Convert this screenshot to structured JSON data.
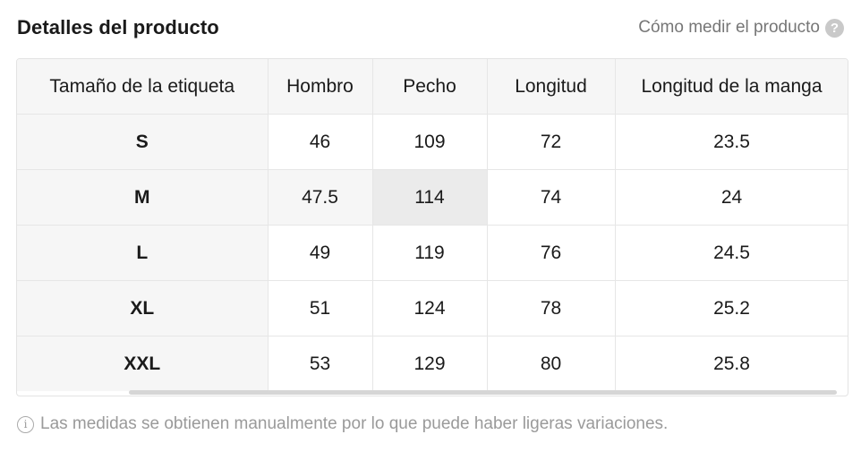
{
  "header": {
    "title": "Detalles del producto",
    "help_link": "Cómo medir el producto",
    "help_icon": "question-circle-icon"
  },
  "table": {
    "columns": [
      "Tamaño de la etiqueta",
      "Hombro",
      "Pecho",
      "Longitud",
      "Longitud de la manga"
    ],
    "rows": [
      [
        "S",
        "46",
        "109",
        "72",
        "23.5"
      ],
      [
        "M",
        "47.5",
        "114",
        "74",
        "24"
      ],
      [
        "L",
        "49",
        "119",
        "76",
        "24.5"
      ],
      [
        "XL",
        "51",
        "124",
        "78",
        "25.2"
      ],
      [
        "XXL",
        "53",
        "129",
        "80",
        "25.8"
      ]
    ]
  },
  "footer": {
    "note": "Las medidas se obtienen manualmente por lo que puede haber ligeras variaciones.",
    "note_icon": "info-circle-icon"
  },
  "colors": {
    "header_bg": "#f6f6f6",
    "highlight_cell": "#ebebeb",
    "muted_text": "#9a9a9a"
  }
}
